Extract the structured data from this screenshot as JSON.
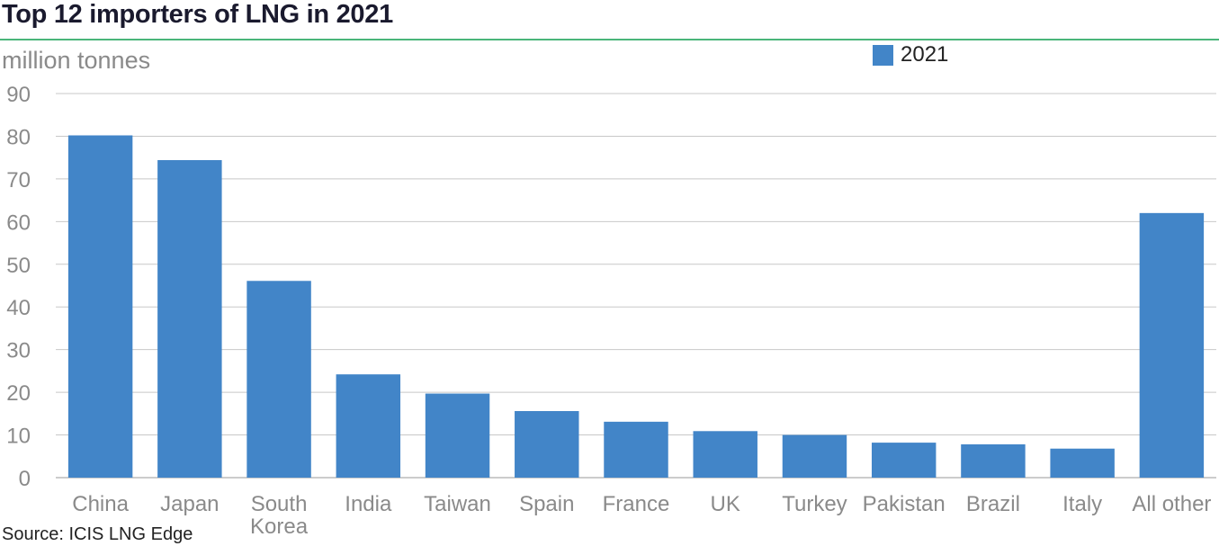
{
  "chart_data": {
    "type": "bar",
    "title": "Top 12 importers of LNG in 2021",
    "ylabel": "million tonnes",
    "xlabel": "",
    "ylim": [
      0,
      90
    ],
    "yticks": [
      0,
      10,
      20,
      30,
      40,
      50,
      60,
      70,
      80,
      90
    ],
    "grid": true,
    "legend_position": "top-right",
    "categories": [
      "China",
      "Japan",
      "South Korea",
      "India",
      "Taiwan",
      "Spain",
      "France",
      "UK",
      "Turkey",
      "Pakistan",
      "Brazil",
      "Italy",
      "All other"
    ],
    "category_lines": [
      [
        "China"
      ],
      [
        "Japan"
      ],
      [
        "South",
        "Korea"
      ],
      [
        "India"
      ],
      [
        "Taiwan"
      ],
      [
        "Spain"
      ],
      [
        "France"
      ],
      [
        "UK"
      ],
      [
        "Turkey"
      ],
      [
        "Pakistan"
      ],
      [
        "Brazil"
      ],
      [
        "Italy"
      ],
      [
        "All other"
      ]
    ],
    "series": [
      {
        "name": "2021",
        "color": "#4285c8",
        "values": [
          80.2,
          74.4,
          46.1,
          24.2,
          19.7,
          15.6,
          13.1,
          10.9,
          10.0,
          8.2,
          7.8,
          6.8,
          62.0
        ]
      }
    ],
    "source": "Source: ICIS LNG Edge"
  },
  "colors": {
    "bar": "#4285c8",
    "grid": "#c8c8c8",
    "accent_rule": "#4ab57a",
    "axis_text": "#8a8a8a"
  }
}
